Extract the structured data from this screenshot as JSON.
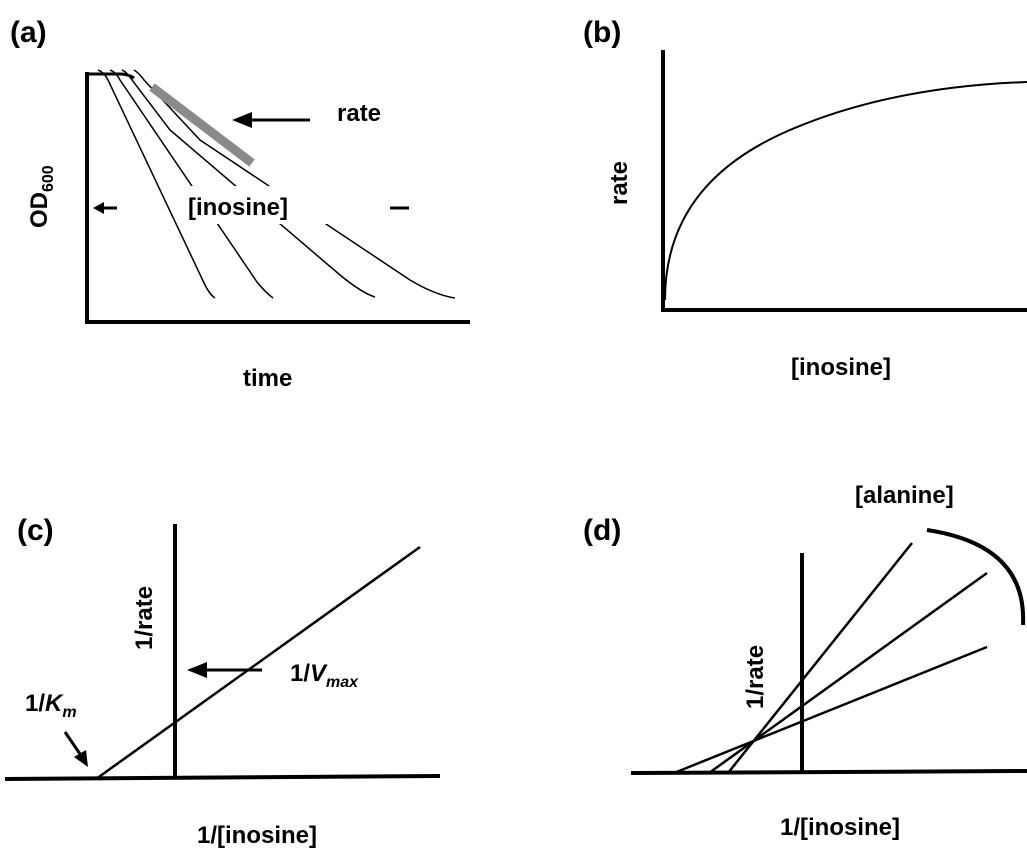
{
  "panels": {
    "a": {
      "letter": "(a)",
      "ylabel_main": "OD",
      "ylabel_sub": "600",
      "xlabel": "time",
      "rate_label": "rate",
      "inosine_label": "[inosine]",
      "note": "Growth curves: OD600 declines after a plateau; higher [inosine] shifts decline earlier (left arrow)."
    },
    "b": {
      "letter": "(b)",
      "ylabel": "rate",
      "xlabel": "[inosine]"
    },
    "c": {
      "letter": "(c)",
      "ylabel": "1/rate",
      "xlabel": "1/[inosine]",
      "km_prefix": "1/",
      "km_main": "K",
      "km_sub": "m",
      "vmax_prefix": "1/",
      "vmax_main": "V",
      "vmax_sub": "max"
    },
    "d": {
      "letter": "(d)",
      "ylabel": "1/rate",
      "xlabel": "1/[inosine]",
      "alanine_label": "[alanine]"
    }
  },
  "colors": {
    "line": "#000000",
    "highlight": "#8a8a8a"
  }
}
